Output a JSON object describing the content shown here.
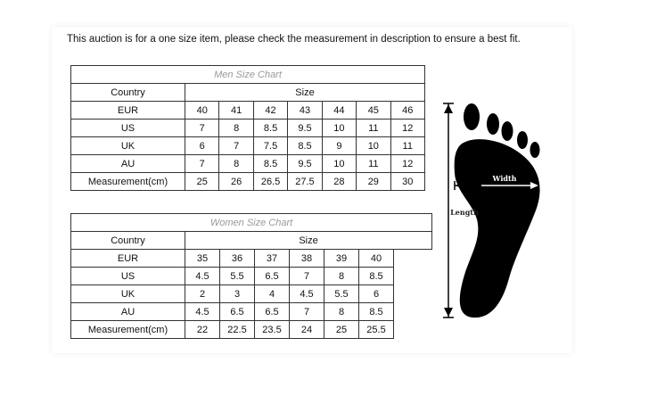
{
  "notice": "This auction is for a one size item, please check the measurement in description to ensure a best fit.",
  "men": {
    "title": "Men Size Chart",
    "country_label": "Country",
    "size_label": "Size",
    "rows": [
      {
        "label": "EUR",
        "values": [
          "40",
          "41",
          "42",
          "43",
          "44",
          "45",
          "46"
        ]
      },
      {
        "label": "US",
        "values": [
          "7",
          "8",
          "8.5",
          "9.5",
          "10",
          "11",
          "12"
        ]
      },
      {
        "label": "UK",
        "values": [
          "6",
          "7",
          "7.5",
          "8.5",
          "9",
          "10",
          "11"
        ]
      },
      {
        "label": "AU",
        "values": [
          "7",
          "8",
          "8.5",
          "9.5",
          "10",
          "11",
          "12"
        ]
      },
      {
        "label": "Measurement(cm)",
        "values": [
          "25",
          "26",
          "26.5",
          "27.5",
          "28",
          "29",
          "30"
        ]
      }
    ]
  },
  "women": {
    "title": "Women Size Chart",
    "country_label": "Country",
    "size_label": "Size",
    "rows": [
      {
        "label": "EUR",
        "values": [
          "35",
          "36",
          "37",
          "38",
          "39",
          "40"
        ]
      },
      {
        "label": "US",
        "values": [
          "4.5",
          "5.5",
          "6.5",
          "7",
          "8",
          "8.5"
        ]
      },
      {
        "label": "UK",
        "values": [
          "2",
          "3",
          "4",
          "4.5",
          "5.5",
          "6"
        ]
      },
      {
        "label": "AU",
        "values": [
          "4.5",
          "6.5",
          "6.5",
          "7",
          "8",
          "8.5"
        ]
      },
      {
        "label": "Measurement(cm)",
        "values": [
          "22",
          "22.5",
          "23.5",
          "24",
          "25",
          "25.5"
        ]
      }
    ]
  },
  "diagram": {
    "width_label": "Width",
    "length_label": "Length"
  }
}
